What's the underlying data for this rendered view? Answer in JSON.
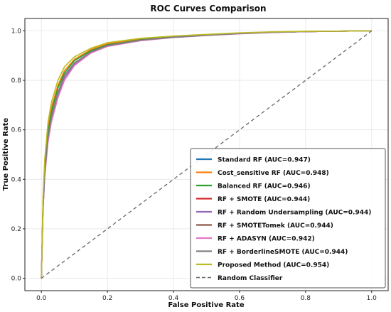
{
  "chart_data": {
    "type": "line",
    "title": "ROC Curves Comparison",
    "xlabel": "False Positive Rate",
    "ylabel": "True Positive Rate",
    "xlim": [
      -0.05,
      1.05
    ],
    "ylim": [
      -0.05,
      1.05
    ],
    "xticks": [
      "0.0",
      "0.2",
      "0.4",
      "0.6",
      "0.8",
      "1.0"
    ],
    "yticks": [
      "0.0",
      "0.2",
      "0.4",
      "0.6",
      "0.8",
      "1.0"
    ],
    "grid": true,
    "legend_position": "lower-right",
    "series": [
      {
        "name": "Standard RF (AUC=0.947)",
        "color": "#1f77b4",
        "dash": "solid",
        "x": [
          0,
          0.005,
          0.01,
          0.02,
          0.03,
          0.05,
          0.07,
          0.1,
          0.15,
          0.2,
          0.3,
          0.4,
          0.5,
          0.6,
          0.7,
          0.8,
          0.9,
          1.0
        ],
        "y": [
          0,
          0.3,
          0.45,
          0.6,
          0.68,
          0.77,
          0.83,
          0.88,
          0.92,
          0.945,
          0.965,
          0.975,
          0.983,
          0.99,
          0.994,
          0.997,
          0.999,
          1.0
        ]
      },
      {
        "name": "Cost_sensitive RF (AUC=0.948)",
        "color": "#ff7f0e",
        "dash": "solid",
        "x": [
          0,
          0.005,
          0.01,
          0.02,
          0.03,
          0.05,
          0.07,
          0.1,
          0.15,
          0.2,
          0.3,
          0.4,
          0.5,
          0.6,
          0.7,
          0.8,
          0.9,
          1.0
        ],
        "y": [
          0,
          0.31,
          0.46,
          0.61,
          0.69,
          0.78,
          0.84,
          0.885,
          0.925,
          0.948,
          0.967,
          0.977,
          0.985,
          0.991,
          0.995,
          0.998,
          0.999,
          1.0
        ]
      },
      {
        "name": "Balanced RF (AUC=0.946)",
        "color": "#2ca02c",
        "dash": "solid",
        "x": [
          0,
          0.005,
          0.01,
          0.02,
          0.03,
          0.05,
          0.07,
          0.1,
          0.15,
          0.2,
          0.3,
          0.4,
          0.5,
          0.6,
          0.7,
          0.8,
          0.9,
          1.0
        ],
        "y": [
          0,
          0.3,
          0.44,
          0.59,
          0.67,
          0.77,
          0.83,
          0.88,
          0.92,
          0.943,
          0.964,
          0.975,
          0.983,
          0.99,
          0.994,
          0.997,
          0.999,
          1.0
        ]
      },
      {
        "name": "RF + SMOTE (AUC=0.944)",
        "color": "#d62728",
        "dash": "solid",
        "x": [
          0,
          0.005,
          0.01,
          0.02,
          0.03,
          0.05,
          0.07,
          0.1,
          0.15,
          0.2,
          0.3,
          0.4,
          0.5,
          0.6,
          0.7,
          0.8,
          0.9,
          1.0
        ],
        "y": [
          0,
          0.28,
          0.42,
          0.57,
          0.65,
          0.75,
          0.82,
          0.87,
          0.915,
          0.94,
          0.962,
          0.974,
          0.982,
          0.989,
          0.994,
          0.997,
          0.999,
          1.0
        ]
      },
      {
        "name": "RF + Random Undersampling (AUC=0.944)",
        "color": "#9467bd",
        "dash": "solid",
        "x": [
          0,
          0.005,
          0.01,
          0.02,
          0.03,
          0.05,
          0.07,
          0.1,
          0.15,
          0.2,
          0.3,
          0.4,
          0.5,
          0.6,
          0.7,
          0.8,
          0.9,
          1.0
        ],
        "y": [
          0,
          0.28,
          0.42,
          0.56,
          0.64,
          0.74,
          0.81,
          0.865,
          0.915,
          0.94,
          0.962,
          0.974,
          0.982,
          0.989,
          0.994,
          0.997,
          0.999,
          1.0
        ]
      },
      {
        "name": "RF + SMOTETomek (AUC=0.944)",
        "color": "#8c564b",
        "dash": "solid",
        "x": [
          0,
          0.005,
          0.01,
          0.02,
          0.03,
          0.05,
          0.07,
          0.1,
          0.15,
          0.2,
          0.3,
          0.4,
          0.5,
          0.6,
          0.7,
          0.8,
          0.9,
          1.0
        ],
        "y": [
          0,
          0.28,
          0.42,
          0.57,
          0.65,
          0.75,
          0.82,
          0.87,
          0.915,
          0.94,
          0.962,
          0.974,
          0.982,
          0.989,
          0.994,
          0.997,
          0.999,
          1.0
        ]
      },
      {
        "name": "RF + ADASYN (AUC=0.942)",
        "color": "#e377c2",
        "dash": "solid",
        "x": [
          0,
          0.005,
          0.01,
          0.02,
          0.03,
          0.05,
          0.07,
          0.1,
          0.15,
          0.2,
          0.3,
          0.4,
          0.5,
          0.6,
          0.7,
          0.8,
          0.9,
          1.0
        ],
        "y": [
          0,
          0.27,
          0.41,
          0.55,
          0.63,
          0.73,
          0.8,
          0.86,
          0.91,
          0.937,
          0.96,
          0.973,
          0.981,
          0.988,
          0.993,
          0.997,
          0.999,
          1.0
        ]
      },
      {
        "name": "RF + BorderlineSMOTE (AUC=0.944)",
        "color": "#7f7f7f",
        "dash": "solid",
        "x": [
          0,
          0.005,
          0.01,
          0.02,
          0.03,
          0.05,
          0.07,
          0.1,
          0.15,
          0.2,
          0.3,
          0.4,
          0.5,
          0.6,
          0.7,
          0.8,
          0.9,
          1.0
        ],
        "y": [
          0,
          0.28,
          0.42,
          0.57,
          0.65,
          0.75,
          0.82,
          0.87,
          0.915,
          0.94,
          0.962,
          0.974,
          0.982,
          0.989,
          0.994,
          0.997,
          0.999,
          1.0
        ]
      },
      {
        "name": "Proposed Method (AUC=0.954)",
        "color": "#bcbd22",
        "dash": "solid",
        "x": [
          0,
          0.005,
          0.01,
          0.02,
          0.03,
          0.05,
          0.07,
          0.1,
          0.15,
          0.2,
          0.3,
          0.4,
          0.5,
          0.6,
          0.7,
          0.8,
          0.9,
          1.0
        ],
        "y": [
          0,
          0.33,
          0.48,
          0.63,
          0.71,
          0.8,
          0.855,
          0.895,
          0.93,
          0.952,
          0.97,
          0.979,
          0.986,
          0.992,
          0.996,
          0.998,
          0.999,
          1.0
        ]
      },
      {
        "name": "Random Classifier",
        "color": "#666666",
        "dash": "dashed",
        "x": [
          0,
          1
        ],
        "y": [
          0,
          1
        ]
      }
    ]
  }
}
